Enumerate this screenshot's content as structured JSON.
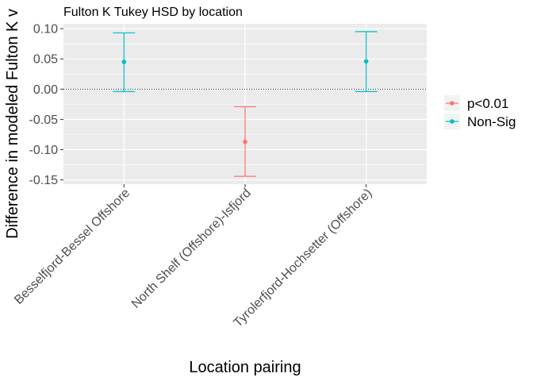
{
  "chart_data": {
    "type": "errorbar",
    "title": "Fulton K Tukey HSD by location",
    "xlabel": "Location pairing",
    "ylabel": "Difference in modeled Fulton K v",
    "categories": [
      "Besselfjord-Bessel Offshore",
      "North Shelf (Offshore)-Isfjord",
      "Tyrolerfjord-Hochsetter (Offshore)"
    ],
    "points": [
      {
        "category": "Besselfjord-Bessel Offshore",
        "estimate": 0.045,
        "lower": -0.004,
        "upper": 0.093,
        "group": "Non-Sig"
      },
      {
        "category": "North Shelf (Offshore)-Isfjord",
        "estimate": -0.087,
        "lower": -0.144,
        "upper": -0.029,
        "group": "p<0.01"
      },
      {
        "category": "Tyrolerfjord-Hochsetter (Offshore)",
        "estimate": 0.046,
        "lower": -0.004,
        "upper": 0.095,
        "group": "Non-Sig"
      }
    ],
    "ylim": [
      -0.157,
      0.108
    ],
    "yticks": [
      0.1,
      0.05,
      0.0,
      -0.05,
      -0.1,
      -0.15
    ],
    "ytick_labels": [
      "0.10",
      "0.05",
      "0.00",
      "-0.05",
      "-0.10",
      "-0.15"
    ],
    "reference_line": 0,
    "grid": true,
    "legend": {
      "placement": "right",
      "entries": [
        {
          "label": "p<0.01",
          "color": "#F8766D"
        },
        {
          "label": "Non-Sig",
          "color": "#00BFC4"
        }
      ]
    },
    "colors": {
      "panel_background": "#EBEBEB",
      "grid": "#FFFFFF",
      "p<0.01": "#F8766D",
      "Non-Sig": "#00BFC4"
    }
  }
}
